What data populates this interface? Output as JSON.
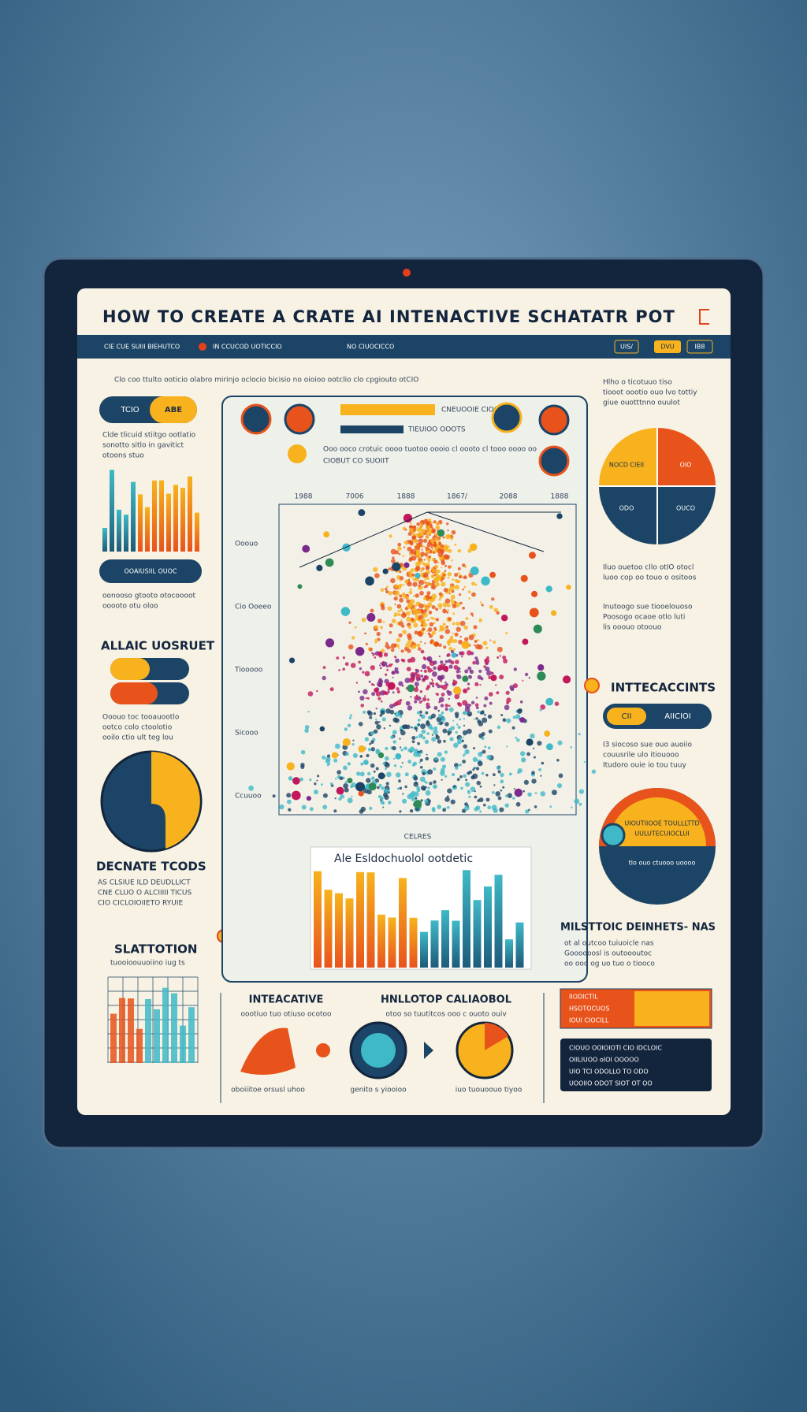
{
  "header": {
    "title": "HOW TO CREATE A CRATE AI INTENACTIVE SCHATATR POT"
  },
  "nav": {
    "items": [
      "CIE CUE SUIII BIEHUTCO",
      "IN CCUCOD UOTICCIO",
      "NO CIUOCICCO"
    ],
    "buttons": [
      "UIS/",
      "DVU",
      "IB8"
    ]
  },
  "intro": "Clo coo ttulto ooticio olabro mirinjo oclocio bicisio no oioioo ootclio clo cpgiouto otCIO",
  "left": {
    "pill": [
      "TCIO",
      "ABE"
    ],
    "pill_text": [
      "Clde tlicuid stiitgo ootlatio",
      "sonotto sitlo in gavitict",
      "otoons stuo"
    ],
    "button": "OOAIUSIIL OUOC",
    "button_text": [
      "oonooso gtooto otocoooot",
      "ooooto otu oloo"
    ],
    "section1": "ALLAIC UOSRUET",
    "section1_text": [
      "Ooouo toc tooauootlo",
      "ootco colo ctoolotio",
      "ooilo ctio ult teg lou"
    ],
    "section2": "DECNATE TCODS",
    "section2_text": [
      "AS CLSIUE ILD DEUDLLICT",
      "CNE CLUO O ALCIIIII TICUS",
      "CIO CICLOIOIIETO RYUIE"
    ],
    "section3": "SLATTOTION",
    "section3_text": "tuooioouuoiino iug ts"
  },
  "plot": {
    "top_labels": [
      "1988",
      "7006",
      "1888",
      "1867/",
      "2088",
      "1888"
    ],
    "legend": [
      "CNEUOOIE CIOOTE",
      "TIEUIOO OOOTS",
      "CIOBUT CO SUOIIT"
    ],
    "note": "Ooo ooco crotuic oooo tuotoo oooio cl oooto cl tooo oooo oo"
  },
  "panel": {
    "chart_title": "Ale Esldochuolol ootdetic",
    "x_label": "CELRES",
    "side_labels": [
      "Ooouo",
      "Cio Ooeeo",
      "Tiooooo",
      "Sicooo",
      "Ccuuoo"
    ]
  },
  "right": {
    "intro": [
      "Hlho o ticotuuo tiso",
      "tiooot oootio ouo lvo tottiy",
      "giue ouotttnno ouulot"
    ],
    "pie_labels": [
      "NOCD CIEII",
      "OIO",
      "ODO",
      "OUCO"
    ],
    "pie_text": [
      "Iluo ouetoo cllo otIO otocl",
      "luoo cop oo touo o ositoos"
    ],
    "text2": [
      "Inutoogo sue tiooelouoso",
      "Poosogo ocaoe otlo luti",
      "lis ooouo otoouo"
    ],
    "section": "INTTECACCINTS",
    "toggle": [
      "CII",
      "AIICIOI"
    ],
    "toggle_text": [
      "I3 siocoso sue ouo auoiio",
      "couusrile ulo itiouooo",
      "Itudoro ouie io tou tuuy"
    ],
    "half_pie": [
      "UIOUTIIOOE TOULLLTTD",
      "UULUTECUIOCLUI",
      "tlo ouo ctuooo uoooo"
    ],
    "section2": "MILSTTOIC DEINHETS- NAS",
    "section2_text": [
      "ot al outcoo tuiuoicle nas",
      "Goooooosl is outoooutoc",
      "oo ooo og uo tuo o tiooco"
    ],
    "table": [
      "IIODICTIL",
      "HSOTOCUOS",
      "IOUI CIOCILL"
    ],
    "box": [
      "CIOUO OOIOIOTI CIO IDCLOIC",
      "OIILIUOO oIOI OOOOO",
      "UIO TCI ODOLLO TO ODO",
      "UOOIIO ODOT SIOT OT OO"
    ]
  },
  "bottom": {
    "interactive": "INTEACATIVE",
    "interactive_text": "oootiuo tuo otiuso ocotoo",
    "collab": "HNLLOTOP CALIAOBOL",
    "collab_text": "otoo so tuutitcos ooo c ouoto ouiv",
    "captions": [
      "oboiiitoe orsusl uhoo",
      "genito s yiooioo",
      "iuo tuouoouo tiyoo"
    ]
  }
}
